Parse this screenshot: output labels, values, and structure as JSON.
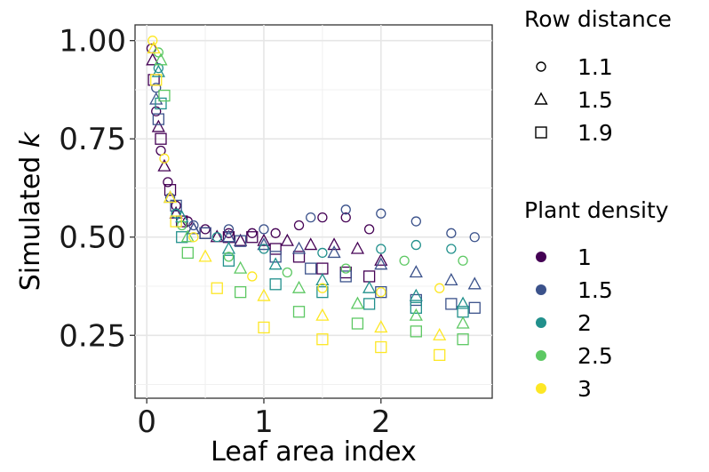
{
  "chart_data": {
    "type": "scatter",
    "xlabel": "Leaf area index",
    "ylabel_prefix": "Simulated ",
    "ylabel_var": "k",
    "xlim": [
      -0.1,
      2.95
    ],
    "ylim": [
      0.09,
      1.04
    ],
    "x_ticks": [
      0,
      1,
      2
    ],
    "x_tick_labels": [
      "0",
      "1",
      "2"
    ],
    "y_ticks": [
      0.25,
      0.5,
      0.75,
      1.0
    ],
    "y_tick_labels": [
      "0.25",
      "0.50",
      "0.75",
      "1.00"
    ],
    "grid": true,
    "legend_position": "right",
    "shape_legend": {
      "title": "Row distance",
      "items": [
        {
          "label": "1.1",
          "shape": "circle"
        },
        {
          "label": "1.5",
          "shape": "triangle"
        },
        {
          "label": "1.9",
          "shape": "square"
        }
      ]
    },
    "color_legend": {
      "title": "Plant density",
      "items": [
        {
          "label": "1",
          "color": "#440154"
        },
        {
          "label": "1.5",
          "color": "#3B528B"
        },
        {
          "label": "2",
          "color": "#21908C"
        },
        {
          "label": "2.5",
          "color": "#5DC863"
        },
        {
          "label": "3",
          "color": "#FDE725"
        }
      ]
    },
    "series": [
      {
        "density": "1",
        "row_distance": "1.1",
        "points": [
          [
            0.04,
            0.98
          ],
          [
            0.08,
            0.82
          ],
          [
            0.12,
            0.72
          ],
          [
            0.18,
            0.64
          ],
          [
            0.25,
            0.58
          ],
          [
            0.35,
            0.54
          ],
          [
            0.5,
            0.52
          ],
          [
            0.7,
            0.51
          ],
          [
            0.9,
            0.51
          ],
          [
            1.1,
            0.51
          ],
          [
            1.3,
            0.53
          ],
          [
            1.5,
            0.55
          ],
          [
            1.7,
            0.55
          ],
          [
            1.9,
            0.52
          ]
        ]
      },
      {
        "density": "1",
        "row_distance": "1.5",
        "points": [
          [
            0.05,
            0.95
          ],
          [
            0.1,
            0.78
          ],
          [
            0.15,
            0.68
          ],
          [
            0.25,
            0.56
          ],
          [
            0.4,
            0.52
          ],
          [
            0.6,
            0.5
          ],
          [
            0.8,
            0.49
          ],
          [
            1.0,
            0.49
          ],
          [
            1.2,
            0.49
          ],
          [
            1.4,
            0.48
          ],
          [
            1.6,
            0.48
          ],
          [
            1.8,
            0.47
          ],
          [
            2.0,
            0.44
          ]
        ]
      },
      {
        "density": "1",
        "row_distance": "1.9",
        "points": [
          [
            0.06,
            0.9
          ],
          [
            0.12,
            0.75
          ],
          [
            0.2,
            0.62
          ],
          [
            0.3,
            0.54
          ],
          [
            0.5,
            0.51
          ],
          [
            0.7,
            0.5
          ],
          [
            0.9,
            0.5
          ],
          [
            1.1,
            0.47
          ],
          [
            1.3,
            0.45
          ],
          [
            1.5,
            0.42
          ],
          [
            1.7,
            0.41
          ],
          [
            1.9,
            0.4
          ]
        ]
      },
      {
        "density": "1.5",
        "row_distance": "1.1",
        "points": [
          [
            0.08,
            0.88
          ],
          [
            0.2,
            0.6
          ],
          [
            0.4,
            0.53
          ],
          [
            0.7,
            0.52
          ],
          [
            1.0,
            0.52
          ],
          [
            1.4,
            0.55
          ],
          [
            1.7,
            0.57
          ],
          [
            2.0,
            0.56
          ],
          [
            2.3,
            0.54
          ],
          [
            2.6,
            0.51
          ],
          [
            2.8,
            0.5
          ]
        ]
      },
      {
        "density": "1.5",
        "row_distance": "1.5",
        "points": [
          [
            0.08,
            0.85
          ],
          [
            0.2,
            0.6
          ],
          [
            0.4,
            0.52
          ],
          [
            0.7,
            0.5
          ],
          [
            1.0,
            0.48
          ],
          [
            1.3,
            0.47
          ],
          [
            1.6,
            0.46
          ],
          [
            2.0,
            0.43
          ],
          [
            2.3,
            0.41
          ],
          [
            2.6,
            0.39
          ],
          [
            2.8,
            0.38
          ]
        ]
      },
      {
        "density": "1.5",
        "row_distance": "1.9",
        "points": [
          [
            0.1,
            0.8
          ],
          [
            0.25,
            0.58
          ],
          [
            0.5,
            0.51
          ],
          [
            0.8,
            0.49
          ],
          [
            1.1,
            0.45
          ],
          [
            1.4,
            0.42
          ],
          [
            1.7,
            0.4
          ],
          [
            2.0,
            0.36
          ],
          [
            2.3,
            0.34
          ],
          [
            2.6,
            0.33
          ],
          [
            2.8,
            0.32
          ]
        ]
      },
      {
        "density": "2",
        "row_distance": "1.1",
        "points": [
          [
            0.1,
            0.93
          ],
          [
            0.25,
            0.56
          ],
          [
            0.6,
            0.5
          ],
          [
            1.0,
            0.47
          ],
          [
            1.5,
            0.46
          ],
          [
            2.0,
            0.47
          ],
          [
            2.3,
            0.48
          ],
          [
            2.6,
            0.47
          ]
        ]
      },
      {
        "density": "2",
        "row_distance": "1.5",
        "points": [
          [
            0.1,
            0.92
          ],
          [
            0.3,
            0.55
          ],
          [
            0.7,
            0.47
          ],
          [
            1.1,
            0.43
          ],
          [
            1.5,
            0.39
          ],
          [
            1.9,
            0.37
          ],
          [
            2.3,
            0.35
          ],
          [
            2.7,
            0.33
          ]
        ]
      },
      {
        "density": "2",
        "row_distance": "1.9",
        "points": [
          [
            0.12,
            0.84
          ],
          [
            0.3,
            0.5
          ],
          [
            0.7,
            0.44
          ],
          [
            1.1,
            0.38
          ],
          [
            1.5,
            0.36
          ],
          [
            1.9,
            0.33
          ],
          [
            2.3,
            0.32
          ],
          [
            2.7,
            0.31
          ]
        ]
      },
      {
        "density": "2.5",
        "row_distance": "1.1",
        "points": [
          [
            0.1,
            0.97
          ],
          [
            0.3,
            0.53
          ],
          [
            0.7,
            0.45
          ],
          [
            1.2,
            0.41
          ],
          [
            1.7,
            0.42
          ],
          [
            2.2,
            0.44
          ],
          [
            2.7,
            0.44
          ]
        ]
      },
      {
        "density": "2.5",
        "row_distance": "1.5",
        "points": [
          [
            0.12,
            0.95
          ],
          [
            0.35,
            0.5
          ],
          [
            0.8,
            0.42
          ],
          [
            1.3,
            0.37
          ],
          [
            1.8,
            0.33
          ],
          [
            2.3,
            0.3
          ],
          [
            2.7,
            0.28
          ]
        ]
      },
      {
        "density": "2.5",
        "row_distance": "1.9",
        "points": [
          [
            0.15,
            0.86
          ],
          [
            0.35,
            0.46
          ],
          [
            0.8,
            0.36
          ],
          [
            1.3,
            0.31
          ],
          [
            1.8,
            0.28
          ],
          [
            2.3,
            0.26
          ],
          [
            2.7,
            0.24
          ]
        ]
      },
      {
        "density": "3",
        "row_distance": "1.1",
        "points": [
          [
            0.05,
            1.0
          ],
          [
            0.15,
            0.7
          ],
          [
            0.4,
            0.5
          ],
          [
            0.9,
            0.4
          ],
          [
            1.5,
            0.37
          ],
          [
            2.0,
            0.36
          ],
          [
            2.5,
            0.37
          ]
        ]
      },
      {
        "density": "3",
        "row_distance": "1.5",
        "points": [
          [
            0.06,
            0.98
          ],
          [
            0.2,
            0.6
          ],
          [
            0.5,
            0.45
          ],
          [
            1.0,
            0.35
          ],
          [
            1.5,
            0.3
          ],
          [
            2.0,
            0.27
          ],
          [
            2.5,
            0.25
          ]
        ]
      },
      {
        "density": "3",
        "row_distance": "1.9",
        "points": [
          [
            0.08,
            0.9
          ],
          [
            0.25,
            0.54
          ],
          [
            0.6,
            0.37
          ],
          [
            1.0,
            0.27
          ],
          [
            1.5,
            0.24
          ],
          [
            2.0,
            0.22
          ],
          [
            2.5,
            0.2
          ]
        ]
      }
    ]
  }
}
